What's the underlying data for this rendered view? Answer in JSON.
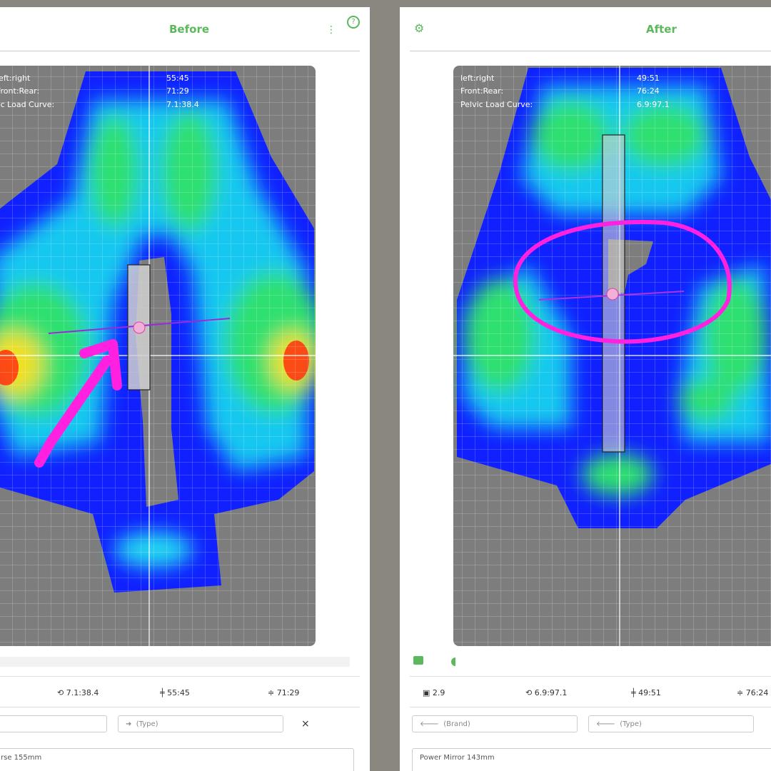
{
  "panels": [
    {
      "title": "Before",
      "metrics": [
        {
          "label": "left:right",
          "value": "55:45"
        },
        {
          "label": "Front:Rear:",
          "value": "71:29"
        },
        {
          "label": "Pelvic Load Curve:",
          "value": "7.1:38.4"
        }
      ],
      "stats": [
        "7.1:38.4",
        "55:45",
        "71:29"
      ],
      "inputs": [
        "(Type)"
      ],
      "saddle": "rse 155mm"
    },
    {
      "title": "After",
      "metrics": [
        {
          "label": "left:right",
          "value": "49:51"
        },
        {
          "label": "Front:Rear:",
          "value": "76:24"
        },
        {
          "label": "Pelvic Load Curve:",
          "value": "6.9:97.1"
        }
      ],
      "stats": [
        "2.9",
        "6.9:97.1",
        "49:51",
        "76:24"
      ],
      "inputs": [
        "(Brand)",
        "(Type)"
      ],
      "saddle": "Power Mirror 143mm"
    }
  ]
}
